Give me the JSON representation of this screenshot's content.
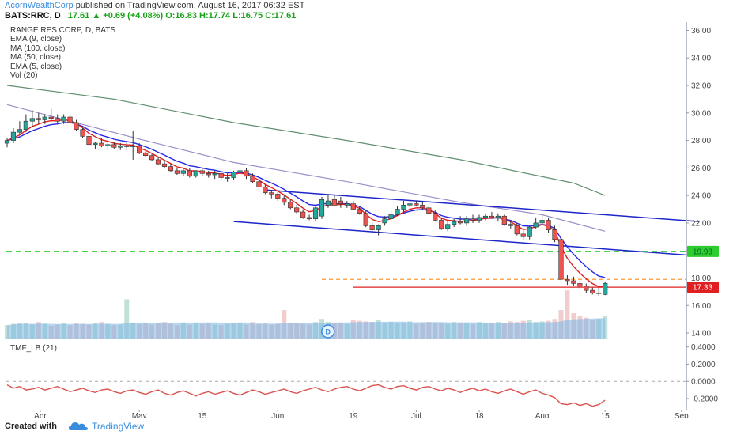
{
  "header": {
    "author": "AcornWealthCorp",
    "published": "published on TradingView.com, August 16, 2017 06:32 EST",
    "symbol": "BATS:RRC, D",
    "last": "17.61",
    "change": "+0.69 (+4.08%)",
    "open": "O:16.83",
    "high": "H:17.74",
    "low": "L:16.75",
    "close": "C:17.61"
  },
  "legend": {
    "title": "RANGE RES CORP, D, BATS",
    "items": [
      "EMA (9, close)",
      "MA (100, close)",
      "MA (50, close)",
      "EMA (5, close)",
      "Vol (20)"
    ]
  },
  "tmf_title": "TMF_LB (21)",
  "footer": {
    "created": "Created with",
    "brand": "TradingView"
  },
  "colors": {
    "up": "#26a69a",
    "down": "#ef5350",
    "ema9": "#2727e6",
    "ema5": "#e02020",
    "ma100": "#5f8f6e",
    "ma50": "#9b8ec8",
    "channel": "#1d26c9",
    "support": "#2ecc2e",
    "resist": "#ff9933",
    "redline": "#e02020",
    "tmf": "#d9534f",
    "volume": "#7cb7e6"
  },
  "chart_data": [
    {
      "type": "candlestick",
      "title": "RANGE RES CORP, D, BATS",
      "x_axis": {
        "ticks": [
          "Apr",
          "May",
          "15",
          "Jun",
          "19",
          "Jul",
          "18",
          "Aug",
          "15",
          "Sep"
        ]
      },
      "y_axis": {
        "range": [
          13.6,
          36.6
        ],
        "ticks": [
          "14.00",
          "16.00",
          "18.00",
          "20.00",
          "22.00",
          "24.00",
          "26.00",
          "28.00",
          "30.00",
          "32.00",
          "34.00",
          "36.00"
        ]
      },
      "price_labels": [
        {
          "value": 19.93,
          "text": "19.93"
        },
        {
          "value": 17.33,
          "text": "17.33"
        }
      ],
      "candles": {
        "dates": [
          "Mar 30",
          "Mar 31",
          "Apr 3",
          "Apr 4",
          "Apr 5",
          "Apr 6",
          "Apr 7",
          "Apr 10",
          "Apr 11",
          "Apr 12",
          "Apr 13",
          "Apr 17",
          "Apr 18",
          "Apr 19",
          "Apr 20",
          "Apr 21",
          "Apr 24",
          "Apr 25",
          "Apr 26",
          "Apr 27",
          "Apr 28",
          "May 1",
          "May 2",
          "May 3",
          "May 4",
          "May 5",
          "May 8",
          "May 9",
          "May 10",
          "May 11",
          "May 12",
          "May 15",
          "May 16",
          "May 17",
          "May 18",
          "May 19",
          "May 22",
          "May 23",
          "May 24",
          "May 25",
          "May 26",
          "May 30",
          "May 31",
          "Jun 1",
          "Jun 2",
          "Jun 5",
          "Jun 6",
          "Jun 7",
          "Jun 8",
          "Jun 9",
          "Jun 12",
          "Jun 13",
          "Jun 14",
          "Jun 15",
          "Jun 16",
          "Jun 19",
          "Jun 20",
          "Jun 21",
          "Jun 22",
          "Jun 23",
          "Jun 26",
          "Jun 27",
          "Jun 28",
          "Jun 29",
          "Jun 30",
          "Jul 3",
          "Jul 5",
          "Jul 6",
          "Jul 7",
          "Jul 10",
          "Jul 11",
          "Jul 12",
          "Jul 13",
          "Jul 14",
          "Jul 17",
          "Jul 18",
          "Jul 19",
          "Jul 20",
          "Jul 21",
          "Jul 24",
          "Jul 25",
          "Jul 26",
          "Jul 27",
          "Jul 28",
          "Jul 31",
          "Aug 1",
          "Aug 2",
          "Aug 3",
          "Aug 4",
          "Aug 7",
          "Aug 8",
          "Aug 9",
          "Aug 10",
          "Aug 11",
          "Aug 14",
          "Aug 15"
        ],
        "open": [
          27.8,
          28.0,
          28.6,
          28.8,
          29.4,
          29.6,
          29.5,
          29.7,
          29.6,
          29.4,
          29.7,
          29.3,
          28.8,
          28.3,
          27.7,
          27.8,
          27.6,
          27.7,
          27.5,
          27.6,
          27.6,
          27.6,
          27.1,
          26.9,
          26.6,
          26.3,
          26.1,
          25.8,
          25.6,
          25.8,
          25.4,
          25.8,
          25.6,
          25.5,
          25.6,
          25.3,
          25.3,
          25.7,
          25.8,
          25.4,
          25.0,
          24.6,
          24.2,
          24.1,
          23.8,
          23.5,
          23.1,
          22.8,
          22.4,
          22.3,
          22.5,
          23.3,
          23.7,
          23.6,
          23.3,
          23.4,
          23.0,
          22.7,
          21.8,
          21.5,
          22.0,
          22.3,
          22.6,
          23.0,
          23.3,
          23.4,
          23.3,
          23.1,
          22.7,
          22.2,
          21.6,
          21.9,
          22.1,
          22.0,
          22.3,
          22.2,
          22.4,
          22.5,
          22.4,
          22.5,
          21.9,
          21.8,
          21.2,
          21.0,
          21.7,
          22.0,
          22.2,
          21.5,
          20.8,
          17.9,
          17.8,
          17.6,
          17.4,
          17.1,
          16.9,
          16.8
        ],
        "high": [
          28.2,
          28.9,
          29.4,
          29.9,
          30.2,
          30.0,
          29.9,
          30.3,
          29.9,
          29.9,
          29.9,
          29.5,
          28.9,
          28.5,
          27.9,
          28.2,
          28.0,
          27.9,
          27.8,
          27.9,
          28.7,
          27.8,
          27.2,
          27.0,
          26.8,
          26.5,
          26.3,
          26.0,
          26.0,
          26.0,
          25.8,
          26.0,
          25.8,
          25.8,
          25.8,
          25.6,
          25.8,
          26.0,
          26.0,
          25.6,
          25.2,
          24.8,
          24.4,
          24.3,
          24.0,
          23.7,
          23.3,
          23.0,
          22.6,
          23.3,
          23.9,
          24.1,
          24.0,
          23.9,
          23.6,
          23.6,
          23.2,
          22.9,
          22.0,
          21.9,
          22.5,
          22.9,
          23.2,
          23.6,
          23.6,
          23.6,
          23.5,
          23.2,
          22.9,
          22.4,
          22.2,
          22.3,
          22.5,
          22.5,
          22.6,
          22.6,
          22.7,
          22.8,
          22.7,
          22.6,
          22.1,
          22.0,
          21.5,
          21.8,
          22.4,
          22.6,
          22.4,
          21.8,
          21.0,
          18.2,
          18.1,
          17.8,
          17.6,
          17.3,
          17.3,
          17.74
        ],
        "low": [
          27.5,
          27.8,
          28.4,
          28.6,
          29.0,
          29.2,
          29.2,
          29.4,
          29.3,
          29.2,
          29.2,
          28.7,
          28.2,
          27.6,
          27.4,
          27.5,
          27.3,
          27.4,
          27.3,
          27.3,
          26.6,
          27.0,
          26.8,
          26.5,
          26.2,
          26.0,
          25.7,
          25.5,
          25.4,
          25.3,
          25.3,
          25.4,
          25.3,
          25.2,
          25.1,
          25.0,
          25.1,
          25.5,
          25.2,
          24.9,
          24.5,
          24.1,
          23.8,
          23.6,
          23.3,
          23.0,
          22.7,
          22.3,
          22.2,
          22.1,
          22.3,
          23.1,
          23.3,
          23.1,
          23.1,
          22.9,
          22.6,
          21.7,
          21.3,
          21.1,
          21.8,
          22.1,
          22.5,
          22.8,
          23.0,
          23.2,
          23.0,
          22.6,
          22.1,
          21.5,
          21.4,
          21.7,
          21.9,
          21.8,
          22.0,
          22.0,
          22.2,
          22.3,
          22.1,
          21.8,
          21.6,
          21.1,
          20.8,
          20.8,
          21.6,
          21.9,
          21.3,
          20.6,
          17.7,
          17.5,
          17.4,
          17.2,
          16.9,
          16.8,
          16.7,
          16.75
        ],
        "close": [
          28.0,
          28.6,
          28.8,
          29.4,
          29.6,
          29.5,
          29.7,
          29.6,
          29.4,
          29.7,
          29.3,
          28.8,
          28.3,
          27.7,
          27.8,
          27.6,
          27.7,
          27.5,
          27.6,
          27.6,
          27.6,
          27.1,
          26.9,
          26.6,
          26.3,
          26.1,
          25.8,
          25.6,
          25.8,
          25.4,
          25.8,
          25.6,
          25.5,
          25.6,
          25.3,
          25.3,
          25.7,
          25.8,
          25.4,
          25.0,
          24.6,
          24.2,
          24.1,
          23.8,
          23.5,
          23.1,
          22.8,
          22.4,
          22.3,
          23.1,
          23.7,
          23.6,
          23.3,
          23.4,
          23.4,
          23.0,
          22.7,
          21.8,
          21.5,
          21.8,
          22.3,
          22.6,
          23.0,
          23.3,
          23.4,
          23.3,
          23.1,
          22.7,
          22.2,
          21.6,
          21.9,
          22.1,
          22.0,
          22.3,
          22.2,
          22.4,
          22.5,
          22.4,
          22.5,
          21.9,
          21.8,
          21.2,
          21.0,
          21.7,
          22.0,
          22.2,
          21.5,
          20.8,
          17.9,
          17.8,
          17.6,
          17.4,
          17.1,
          16.9,
          16.92,
          17.61
        ],
        "volume_range": [
          0,
          10
        ],
        "volume": [
          2.1,
          2.3,
          2.5,
          2.4,
          2.2,
          2.6,
          2.3,
          2.0,
          2.2,
          2.4,
          2.1,
          2.5,
          2.3,
          2.2,
          2.4,
          2.6,
          2.3,
          2.1,
          2.2,
          6.2,
          2.4,
          2.3,
          2.5,
          2.2,
          2.4,
          2.6,
          2.3,
          2.1,
          2.4,
          2.2,
          2.5,
          2.3,
          2.4,
          2.2,
          2.1,
          2.3,
          2.4,
          2.5,
          2.2,
          2.6,
          2.3,
          2.4,
          2.2,
          2.3,
          4.5,
          2.5,
          2.4,
          2.3,
          2.2,
          2.6,
          3.1,
          2.6,
          2.5,
          2.4,
          2.3,
          3.0,
          2.8,
          2.7,
          2.6,
          2.9,
          2.5,
          2.6,
          2.4,
          2.5,
          2.7,
          2.3,
          2.4,
          2.6,
          2.5,
          2.4,
          2.3,
          2.6,
          2.5,
          2.4,
          2.3,
          2.6,
          2.5,
          2.4,
          2.6,
          2.5,
          2.7,
          2.6,
          2.8,
          2.9,
          2.6,
          2.7,
          2.8,
          3.1,
          4.5,
          7.6,
          4.0,
          3.5,
          3.3,
          3.0,
          3.1,
          3.6
        ]
      },
      "moving_averages": [
        {
          "name": "MA (100, close)",
          "x": [
            "Mar 30",
            "Apr 25",
            "May 22",
            "Jun 16",
            "Jul 13",
            "Aug 8",
            "Aug 15"
          ],
          "values": [
            32.0,
            31.0,
            29.3,
            28.0,
            26.6,
            24.9,
            24.0
          ]
        },
        {
          "name": "MA (50, close)",
          "x": [
            "Mar 30",
            "Apr 13",
            "May 1",
            "May 22",
            "Jun 16",
            "Jul 13",
            "Aug 1",
            "Aug 15"
          ],
          "values": [
            30.6,
            29.4,
            28.1,
            26.4,
            25.0,
            23.5,
            22.6,
            21.4
          ]
        }
      ],
      "channel_lines": [
        {
          "name": "upper",
          "x": [
            "May 30",
            "Sep 5"
          ],
          "values": [
            24.4,
            22.1
          ]
        },
        {
          "name": "lower",
          "x": [
            "May 22",
            "Sep 5"
          ],
          "values": [
            22.1,
            19.6
          ]
        }
      ],
      "horizontal_lines": [
        {
          "name": "support",
          "value": 19.93,
          "style": "dashed"
        },
        {
          "name": "resistance",
          "value": 17.9,
          "style": "dashed",
          "from": "Jun 12"
        },
        {
          "name": "redline",
          "value": 17.33,
          "style": "solid",
          "from": "Jun 19"
        }
      ]
    },
    {
      "type": "line",
      "title": "TMF_LB (21)",
      "y_axis": {
        "range": [
          -0.32,
          0.48
        ],
        "ticks": [
          "0.4000",
          "0.2000",
          "0.0000",
          "-0.2000"
        ]
      },
      "series": [
        {
          "name": "TMF_LB (21)",
          "values": [
            -0.04,
            -0.08,
            -0.06,
            -0.1,
            -0.09,
            -0.07,
            -0.1,
            -0.08,
            -0.06,
            -0.09,
            -0.12,
            -0.1,
            -0.08,
            -0.11,
            -0.13,
            -0.1,
            -0.09,
            -0.12,
            -0.14,
            -0.11,
            -0.1,
            -0.13,
            -0.15,
            -0.12,
            -0.1,
            -0.14,
            -0.16,
            -0.13,
            -0.11,
            -0.14,
            -0.17,
            -0.14,
            -0.12,
            -0.15,
            -0.13,
            -0.11,
            -0.14,
            -0.16,
            -0.13,
            -0.1,
            -0.12,
            -0.15,
            -0.13,
            -0.11,
            -0.09,
            -0.12,
            -0.14,
            -0.11,
            -0.09,
            -0.07,
            -0.1,
            -0.12,
            -0.09,
            -0.07,
            -0.06,
            -0.09,
            -0.11,
            -0.08,
            -0.05,
            -0.04,
            -0.07,
            -0.09,
            -0.06,
            -0.05,
            -0.08,
            -0.1,
            -0.07,
            -0.06,
            -0.09,
            -0.11,
            -0.08,
            -0.1,
            -0.13,
            -0.1,
            -0.08,
            -0.11,
            -0.09,
            -0.12,
            -0.14,
            -0.11,
            -0.09,
            -0.12,
            -0.15,
            -0.12,
            -0.1,
            -0.14,
            -0.16,
            -0.19,
            -0.26,
            -0.27,
            -0.25,
            -0.28,
            -0.26,
            -0.29,
            -0.27,
            -0.22
          ]
        }
      ]
    }
  ]
}
